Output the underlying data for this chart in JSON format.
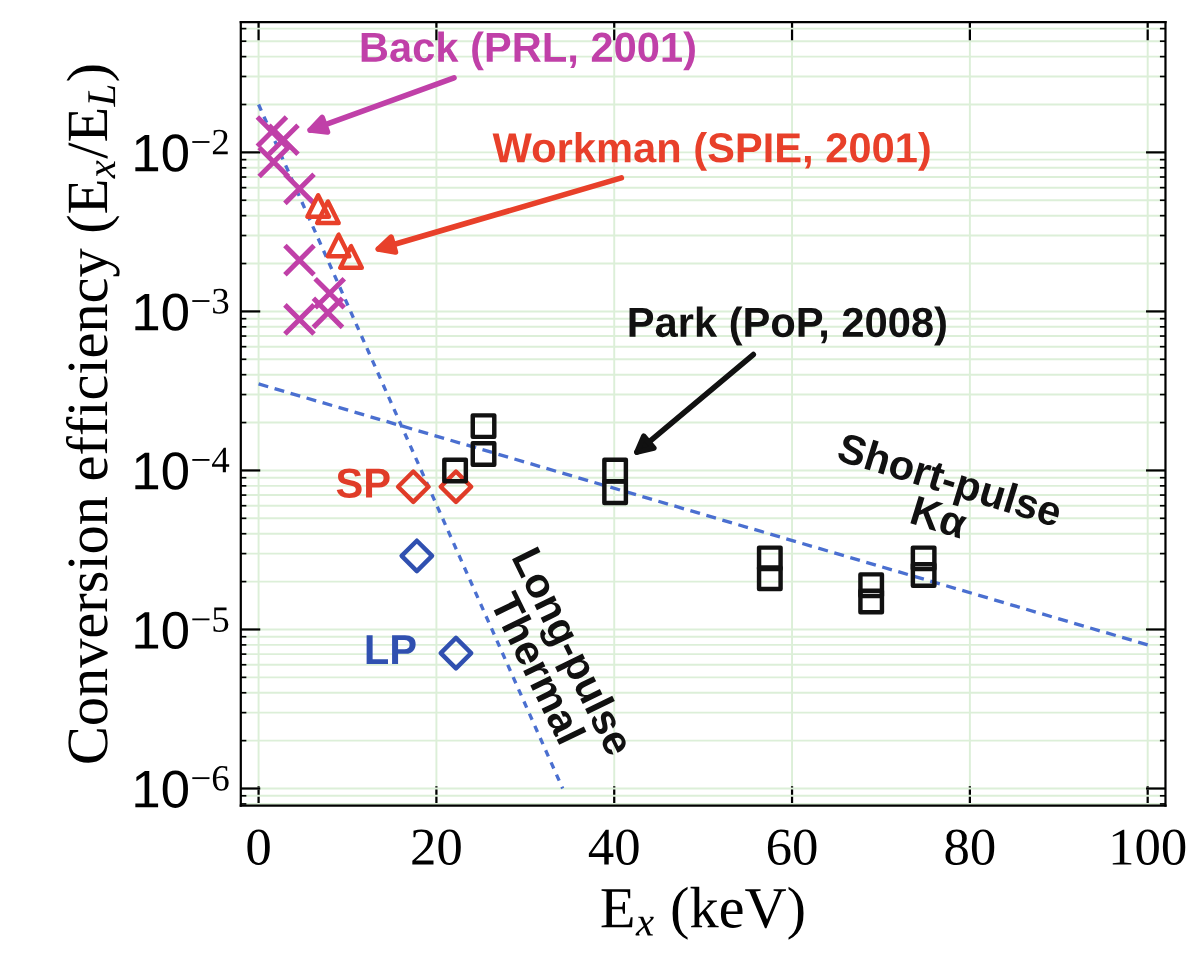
{
  "chart_data": {
    "type": "scatter",
    "xlabel": "E$_{x}$ (keV)",
    "ylabel": "Conversion efficiency (E$_{x}$/E$_{L}$)",
    "log": "y",
    "xlim": [
      -2,
      102
    ],
    "ylim": [
      7.8e-07,
      0.066
    ],
    "xticks": [
      0,
      20,
      40,
      60,
      80,
      100
    ],
    "yticks": [
      {
        "value": 1e-06,
        "label": "10$^{−6}$"
      },
      {
        "value": 1e-05,
        "label": "10$^{−5}$"
      },
      {
        "value": 0.0001,
        "label": "10$^{−4}$"
      },
      {
        "value": 0.001,
        "label": "10$^{−3}$"
      },
      {
        "value": 0.01,
        "label": "10$^{−2}$"
      }
    ],
    "grid": true,
    "series": [
      {
        "name": "Back (PRL, 2001)",
        "color": "#c040a8",
        "marker": "cross",
        "x": [
          1.5,
          2.8,
          1.7,
          4.6,
          4.6,
          4.6,
          8.0,
          7.8
        ],
        "values": [
          0.0135,
          0.012,
          0.0087,
          0.0059,
          0.0021,
          0.00089,
          0.0013,
          0.00098
        ]
      },
      {
        "name": "Workman (SPIE, 2001)",
        "color": "#e8402a",
        "marker": "triangle",
        "x": [
          6.7,
          7.8,
          9.0,
          10.4
        ],
        "values": [
          0.0046,
          0.0042,
          0.0026,
          0.0022
        ]
      },
      {
        "name": "SP",
        "color": "#e03c28",
        "marker": "diamond",
        "x": [
          17.4,
          22.2
        ],
        "values": [
          7.9e-05,
          7.9e-05
        ]
      },
      {
        "name": "LP",
        "color": "#3050b0",
        "marker": "diamond",
        "x": [
          17.8,
          22.2
        ],
        "values": [
          2.9e-05,
          7.1e-06
        ]
      },
      {
        "name": "Park (PoP, 2008)",
        "color": "#111111",
        "marker": "square",
        "x": [
          22.1,
          25.3,
          25.3,
          40.1,
          40.1,
          57.5,
          57.5,
          68.9,
          68.9,
          74.8,
          74.8
        ],
        "values": [
          0.0001,
          0.00019,
          0.000127,
          0.0001,
          7.3e-05,
          2.8e-05,
          2.1e-05,
          1.9e-05,
          1.5e-05,
          2.8e-05,
          2.2e-05
        ]
      },
      {
        "type": "line",
        "color": "#4a6fd0",
        "line_style": "dashed",
        "marker": "none",
        "x": [
          0,
          100
        ],
        "values": [
          0.00035,
          8e-06
        ]
      },
      {
        "type": "line",
        "color": "#4a6fd0",
        "line_style": "dotted",
        "marker": "none",
        "x": [
          0,
          34.2
        ],
        "values": [
          0.02,
          1e-06
        ]
      }
    ],
    "annotations": [
      {
        "text": "Short-pulse\nKα",
        "x": 77,
        "y": 1.9e-05
      },
      {
        "text": "Long-pulse\nThermal",
        "x": 27.4,
        "y": 6.3e-06
      }
    ]
  }
}
